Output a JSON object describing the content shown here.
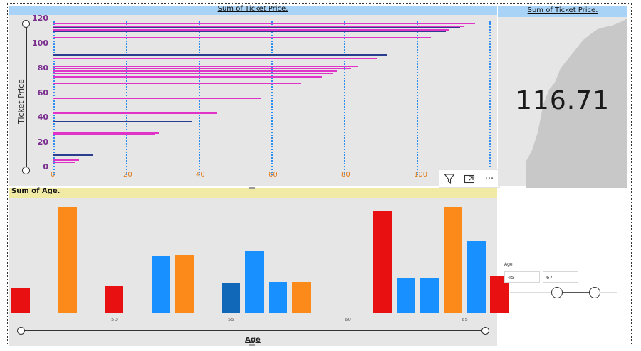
{
  "top_chart": {
    "title": "Sum of Ticket Price.",
    "y_axis_label": "Ticket Price",
    "y_ticks": [
      "0",
      "20",
      "40",
      "60",
      "80",
      "100",
      "120"
    ],
    "x_ticks": [
      "0",
      "20",
      "40",
      "60",
      "80",
      "100"
    ]
  },
  "toolbar": {
    "filter_icon": "filter-icon",
    "focus_icon": "focus-mode-icon",
    "more_label": "···"
  },
  "card": {
    "title": "Sum of Ticket Price.",
    "value": "116.71"
  },
  "bottom_chart": {
    "title": "Sum of Age.",
    "x_axis_label": "Age",
    "age_ticks": [
      "50",
      "55",
      "60",
      "65"
    ]
  },
  "slicer": {
    "label": "Age",
    "min_value": "45",
    "max_value": "67"
  },
  "colors": {
    "magenta": "#e034c8",
    "navy": "#2a3d8f",
    "red": "#e81010",
    "orange": "#fb8a1a",
    "blue": "#1890ff",
    "dark_blue": "#1268b8",
    "title_blue": "#a9d3f6",
    "title_yellow": "#f0eaa5"
  },
  "chart_data": [
    {
      "type": "bar",
      "orientation": "horizontal",
      "title": "Sum of Ticket Price.",
      "ylabel": "Ticket Price",
      "xlim": [
        0,
        120
      ],
      "ylim": [
        0,
        120
      ],
      "series": [
        {
          "y": 117,
          "x": 116,
          "color": "magenta"
        },
        {
          "y": 115,
          "x": 113,
          "color": "magenta"
        },
        {
          "y": 114,
          "x": 112,
          "color": "navy"
        },
        {
          "y": 112,
          "x": 109,
          "color": "magenta"
        },
        {
          "y": 111,
          "x": 108,
          "color": "navy"
        },
        {
          "y": 106,
          "x": 104,
          "color": "magenta"
        },
        {
          "y": 92,
          "x": 92,
          "color": "navy"
        },
        {
          "y": 89,
          "x": 89,
          "color": "magenta"
        },
        {
          "y": 83,
          "x": 84,
          "color": "magenta"
        },
        {
          "y": 81,
          "x": 82,
          "color": "magenta"
        },
        {
          "y": 79,
          "x": 78,
          "color": "magenta"
        },
        {
          "y": 77,
          "x": 77,
          "color": "magenta"
        },
        {
          "y": 74,
          "x": 74,
          "color": "magenta"
        },
        {
          "y": 69,
          "x": 68,
          "color": "magenta"
        },
        {
          "y": 57,
          "x": 57,
          "color": "magenta"
        },
        {
          "y": 45,
          "x": 45,
          "color": "magenta"
        },
        {
          "y": 38,
          "x": 38,
          "color": "navy"
        },
        {
          "y": 29,
          "x": 29,
          "color": "magenta"
        },
        {
          "y": 28,
          "x": 28,
          "color": "magenta"
        },
        {
          "y": 11,
          "x": 11,
          "color": "navy"
        },
        {
          "y": 7,
          "x": 7,
          "color": "magenta"
        },
        {
          "y": 5,
          "x": 6,
          "color": "magenta"
        }
      ]
    },
    {
      "type": "bar",
      "title": "Sum of Age.",
      "xlabel": "Age",
      "x_range": [
        45,
        67
      ],
      "bars": [
        {
          "x": 45,
          "value": 23,
          "color": "red"
        },
        {
          "x": 47,
          "value": 98,
          "color": "orange"
        },
        {
          "x": 49,
          "value": 25,
          "color": "red"
        },
        {
          "x": 51,
          "value": 53,
          "color": "blue"
        },
        {
          "x": 52,
          "value": 54,
          "color": "orange"
        },
        {
          "x": 54,
          "value": 28,
          "color": "dark_blue"
        },
        {
          "x": 55,
          "value": 57,
          "color": "blue"
        },
        {
          "x": 56,
          "value": 29,
          "color": "blue"
        },
        {
          "x": 57,
          "value": 29,
          "color": "orange"
        },
        {
          "x": 60.5,
          "value": 94,
          "color": "red"
        },
        {
          "x": 61.5,
          "value": 32,
          "color": "blue"
        },
        {
          "x": 62.5,
          "value": 32,
          "color": "blue"
        },
        {
          "x": 63.5,
          "value": 98,
          "color": "orange"
        },
        {
          "x": 64.5,
          "value": 67,
          "color": "blue"
        },
        {
          "x": 65.5,
          "value": 34,
          "color": "red"
        }
      ]
    }
  ]
}
